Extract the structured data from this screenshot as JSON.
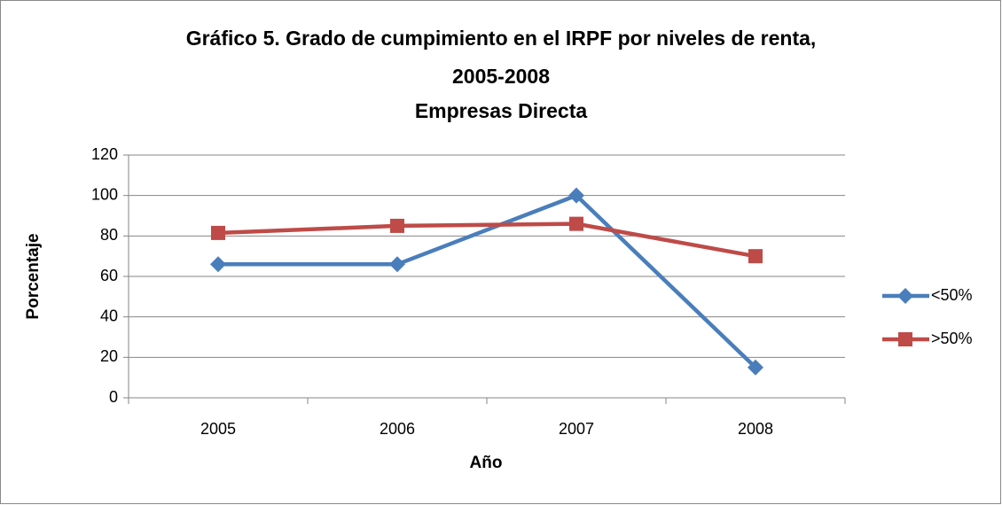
{
  "chart_data": {
    "type": "line",
    "title": [
      "Gráfico 5. Grado de cumpimiento en el IRPF por niveles de renta,",
      "2005-2008",
      "Empresas Directa"
    ],
    "x_label": "Año",
    "y_label": "Porcentaje",
    "categories": [
      "2005",
      "2006",
      "2007",
      "2008"
    ],
    "series": [
      {
        "name": "<50%",
        "color": "#4a7ebb",
        "marker": "diamond",
        "values": [
          66,
          66,
          100,
          15
        ]
      },
      {
        "name": ">50%",
        "color": "#be4b48",
        "marker": "square",
        "values": [
          81.5,
          85,
          86,
          70
        ]
      }
    ],
    "ylim": [
      0,
      120
    ],
    "yticks": [
      0,
      20,
      40,
      60,
      80,
      100,
      120
    ],
    "grid": true,
    "legend": "right"
  }
}
